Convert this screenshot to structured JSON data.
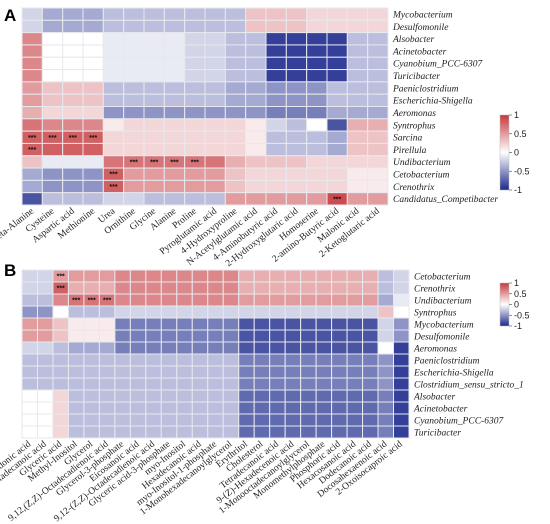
{
  "colors": {
    "neg": "#1c2a8c",
    "mid": "#ffffff",
    "pos": "#c5383c",
    "grid": "#e8e8ee"
  },
  "chart_data": [
    {
      "panel": "A",
      "type": "heatmap",
      "rows": [
        "Mycobacterium",
        "Desulfomonile",
        "Alsobacter",
        "Acinetobacter",
        "Cyanobium_PCC-6307",
        "Turicibacter",
        "Paeniclostridium",
        "Escherichia-Shigella",
        "Aeromonas",
        "Syntrophus",
        "Sarcina",
        "Pirellula",
        "Undibacterium",
        "Cetobacterium",
        "Crenothrix",
        "Candidatus_Competibacter"
      ],
      "columns": [
        "beta-Alanine",
        "Cysteine",
        "Aspartic acid",
        "Methionine",
        "Urea",
        "Ornithine",
        "Glycine",
        "Alanine",
        "Proline",
        "Pyroglutamic acid",
        "4-Hydroxyproline",
        "N-Acetylglutamic acid",
        "4-Aminobutyric acid",
        "2-Hydroxyglutaric acid",
        "Homoserine",
        "2-amino-Butyric acid",
        "Malonic acid",
        "2-Ketoglutaric acid"
      ],
      "values": [
        [
          -0.2,
          -0.4,
          -0.4,
          -0.4,
          -0.3,
          -0.3,
          -0.3,
          -0.3,
          -0.3,
          -0.3,
          -0.3,
          0.3,
          0.3,
          0.3,
          0.2,
          0.2,
          0.2,
          0.2
        ],
        [
          -0.2,
          -0.4,
          -0.4,
          -0.4,
          -0.3,
          -0.3,
          -0.3,
          -0.3,
          -0.3,
          -0.3,
          -0.3,
          0.3,
          0.3,
          0.3,
          0.2,
          0.2,
          0.2,
          0.2
        ],
        [
          0.6,
          0,
          0,
          0,
          -0.1,
          -0.1,
          -0.1,
          -0.1,
          -0.2,
          -0.2,
          -0.3,
          -0.3,
          -0.9,
          -0.9,
          -0.9,
          -0.9,
          -0.3,
          -0.3
        ],
        [
          0.6,
          0,
          0,
          0,
          -0.1,
          -0.1,
          -0.1,
          -0.1,
          -0.2,
          -0.2,
          -0.3,
          -0.3,
          -0.9,
          -0.9,
          -0.9,
          -0.9,
          -0.3,
          -0.3
        ],
        [
          0.6,
          0,
          0,
          0,
          -0.1,
          -0.1,
          -0.1,
          -0.1,
          -0.2,
          -0.2,
          -0.3,
          -0.3,
          -0.9,
          -0.9,
          -0.9,
          -0.9,
          -0.3,
          -0.3
        ],
        [
          0.6,
          0,
          0,
          0,
          -0.1,
          -0.1,
          -0.1,
          -0.1,
          -0.2,
          -0.2,
          -0.3,
          -0.3,
          -0.9,
          -0.9,
          -0.9,
          -0.9,
          -0.3,
          -0.3
        ],
        [
          0.5,
          0.3,
          0.3,
          0.3,
          -0.3,
          -0.3,
          -0.3,
          -0.3,
          -0.3,
          -0.3,
          -0.4,
          -0.4,
          -0.5,
          -0.5,
          -0.5,
          -0.3,
          -0.3,
          -0.3
        ],
        [
          0.5,
          0.3,
          0.3,
          0.3,
          -0.3,
          -0.3,
          -0.3,
          -0.3,
          -0.3,
          -0.3,
          -0.4,
          -0.4,
          -0.5,
          -0.5,
          -0.5,
          -0.3,
          -0.3,
          -0.3
        ],
        [
          0.4,
          0.2,
          0.2,
          0.2,
          -0.5,
          -0.5,
          -0.5,
          -0.5,
          -0.5,
          -0.5,
          -0.5,
          -0.5,
          -0.6,
          -0.6,
          -0.6,
          -0.4,
          -0.4,
          -0.4
        ],
        [
          0.7,
          0.6,
          0.6,
          0.6,
          0.1,
          0.2,
          0.2,
          0.2,
          0.2,
          0.2,
          0.2,
          0.1,
          -0.2,
          -0.3,
          0,
          -0.8,
          0.4,
          0.4
        ],
        [
          0.8,
          0.8,
          0.8,
          0.8,
          0.2,
          0.2,
          0.2,
          0.2,
          0.2,
          0.2,
          0.2,
          0.1,
          -0.3,
          -0.3,
          -0.3,
          -0.4,
          0.3,
          0.3
        ],
        [
          0.8,
          0.8,
          0.8,
          0.8,
          0.2,
          0.2,
          0.2,
          0.2,
          0.2,
          0.2,
          0.2,
          0.1,
          -0.3,
          -0.3,
          -0.3,
          -0.4,
          0.3,
          0.3
        ],
        [
          0.3,
          -0.1,
          -0.1,
          -0.1,
          0.7,
          0.7,
          0.7,
          0.7,
          0.7,
          0.7,
          0.4,
          0.3,
          0.3,
          0.3,
          0.2,
          0.2,
          0.2,
          0.2
        ],
        [
          -0.4,
          -0.5,
          -0.5,
          -0.5,
          0.8,
          0.5,
          0.5,
          0.5,
          0.5,
          0.5,
          0.3,
          0.2,
          0.2,
          0.2,
          0.2,
          0.2,
          0.1,
          0.1
        ],
        [
          -0.4,
          -0.5,
          -0.5,
          -0.5,
          0.8,
          0.5,
          0.5,
          0.5,
          0.5,
          0.5,
          0.3,
          0.2,
          0.2,
          0.2,
          0.2,
          0.2,
          0.1,
          0.1
        ],
        [
          -0.8,
          -0.3,
          -0.3,
          -0.3,
          -0.2,
          -0.2,
          -0.3,
          -0.3,
          -0.3,
          -0.3,
          0.5,
          0.5,
          0.5,
          0.5,
          0.5,
          0.9,
          0.5,
          0.5
        ]
      ],
      "significance": [
        {
          "row": 10,
          "col": 0,
          "label": "***"
        },
        {
          "row": 10,
          "col": 1,
          "label": "***"
        },
        {
          "row": 10,
          "col": 2,
          "label": "***"
        },
        {
          "row": 10,
          "col": 3,
          "label": "***"
        },
        {
          "row": 11,
          "col": 0,
          "label": "***"
        },
        {
          "row": 12,
          "col": 5,
          "label": "***"
        },
        {
          "row": 12,
          "col": 6,
          "label": "***"
        },
        {
          "row": 12,
          "col": 7,
          "label": "***"
        },
        {
          "row": 12,
          "col": 8,
          "label": "***"
        },
        {
          "row": 13,
          "col": 4,
          "label": "***"
        },
        {
          "row": 14,
          "col": 4,
          "label": "***"
        },
        {
          "row": 15,
          "col": 15,
          "label": "***"
        }
      ],
      "legend_ticks": [
        "1",
        "0.5",
        "0",
        "-0.5",
        "-1"
      ],
      "range": [
        -1,
        1
      ]
    },
    {
      "panel": "B",
      "type": "heatmap",
      "rows": [
        "Cetobacterium",
        "Crenothrix",
        "Undibacterium",
        "Syntrophus",
        "Mycobacterium",
        "Desulfomonile",
        "Aeromonas",
        "Paeniclostridium",
        "Escherichia-Shigella",
        "Clostridium_sensu_stricto_1",
        "Alsobacter",
        "Acinetobacter",
        "Cyanobium_PCC-6307",
        "Turicibacter"
      ],
      "columns": [
        "Arachidonic acid",
        "Octadecanoic acid",
        "Glyceric acid",
        "Methyl-Inositol",
        "Glycerol",
        "9,12,(Z,Z)-Octadecadienoic acid",
        "Glycerol-3-phosphate",
        "Eicosanoic acid",
        "9,12-(Z,Z)-Octadecadienoic acid",
        "Glyceric acid-3-phosphate",
        "myo-Inositol",
        "Hexadecanoic acid",
        "myo-Inositol-1-phosphate",
        "1-Monohexadecanoylglycerol",
        "Erythritol",
        "Cholesterol",
        "Tetradecanoic acid",
        "9-(Z)-Hexadecenoic acid",
        "1-Monooctadecanoylglycerol",
        "Monomethylphosphate",
        "Phosphoric acid",
        "Hexacosanoic acid",
        "Dodecanoic acid",
        "Docosahexaenoic acid",
        "2-Oxoisocaproic acid"
      ],
      "values": [
        [
          -0.2,
          -0.2,
          0.5,
          0.5,
          0.5,
          0.5,
          0.6,
          0.6,
          0.6,
          0.6,
          0.6,
          0.6,
          0.6,
          0.6,
          0.4,
          0.4,
          0.4,
          0.4,
          0.4,
          0.4,
          0.4,
          0.4,
          0.4,
          -0.3,
          -0.2
        ],
        [
          -0.2,
          -0.2,
          0.8,
          0.4,
          0.4,
          0.4,
          0.6,
          0.6,
          0.6,
          0.6,
          0.6,
          0.6,
          0.6,
          0.6,
          0.4,
          0.4,
          0.4,
          0.4,
          0.4,
          0.4,
          0.4,
          0.4,
          0.4,
          -0.3,
          -0.2
        ],
        [
          -0.3,
          -0.3,
          0.6,
          0.7,
          0.7,
          0.7,
          0.6,
          0.6,
          0.6,
          0.6,
          0.6,
          0.6,
          0.6,
          0.6,
          0.5,
          0.5,
          0.5,
          0.5,
          0.5,
          0.5,
          0.5,
          0.5,
          0.5,
          -0.4,
          -0.1
        ],
        [
          -0.5,
          -0.5,
          0,
          -0.3,
          -0.3,
          -0.3,
          -0.2,
          -0.2,
          -0.2,
          -0.2,
          -0.2,
          -0.2,
          -0.2,
          -0.2,
          -0.2,
          -0.2,
          -0.2,
          -0.2,
          -0.2,
          -0.2,
          -0.2,
          -0.2,
          -0.2,
          0.3,
          0
        ],
        [
          0.5,
          0.5,
          0.3,
          0.1,
          0.1,
          0.1,
          -0.6,
          -0.6,
          -0.6,
          -0.6,
          -0.6,
          -0.6,
          -0.6,
          -0.6,
          -0.8,
          -0.8,
          -0.8,
          -0.8,
          -0.8,
          -0.8,
          -0.8,
          -0.8,
          -0.8,
          -0.2,
          -0.5
        ],
        [
          0.5,
          0.5,
          0.3,
          0.1,
          0.1,
          0.1,
          -0.6,
          -0.6,
          -0.6,
          -0.6,
          -0.6,
          -0.6,
          -0.6,
          -0.6,
          -0.8,
          -0.8,
          -0.8,
          -0.8,
          -0.8,
          -0.8,
          -0.8,
          -0.8,
          -0.8,
          -0.2,
          -0.5
        ],
        [
          -0.2,
          -0.2,
          -0.3,
          -0.4,
          -0.4,
          -0.4,
          -0.6,
          -0.6,
          -0.6,
          -0.6,
          -0.6,
          -0.6,
          -0.6,
          -0.6,
          -0.8,
          -0.8,
          -0.8,
          -0.8,
          -0.8,
          -0.8,
          -0.8,
          -0.8,
          -0.8,
          0,
          -0.9
        ],
        [
          -0.3,
          -0.3,
          -0.3,
          -0.3,
          -0.3,
          -0.3,
          -0.3,
          -0.3,
          -0.3,
          -0.3,
          -0.3,
          -0.3,
          -0.3,
          -0.3,
          -0.6,
          -0.6,
          -0.6,
          -0.6,
          -0.6,
          -0.6,
          -0.6,
          -0.6,
          -0.6,
          -0.5,
          -0.9
        ],
        [
          -0.3,
          -0.3,
          -0.3,
          -0.3,
          -0.3,
          -0.3,
          -0.3,
          -0.3,
          -0.3,
          -0.3,
          -0.3,
          -0.3,
          -0.3,
          -0.3,
          -0.6,
          -0.6,
          -0.6,
          -0.6,
          -0.6,
          -0.6,
          -0.6,
          -0.6,
          -0.6,
          -0.5,
          -0.9
        ],
        [
          -0.3,
          -0.3,
          -0.3,
          -0.3,
          -0.3,
          -0.3,
          -0.3,
          -0.3,
          -0.3,
          -0.3,
          -0.3,
          -0.3,
          -0.3,
          -0.3,
          -0.6,
          -0.6,
          -0.6,
          -0.6,
          -0.6,
          -0.6,
          -0.6,
          -0.6,
          -0.6,
          -0.5,
          -0.9
        ],
        [
          0,
          0,
          0.2,
          -0.3,
          -0.3,
          -0.3,
          -0.3,
          -0.3,
          -0.3,
          -0.3,
          -0.3,
          -0.3,
          -0.3,
          -0.3,
          -0.7,
          -0.7,
          -0.7,
          -0.7,
          -0.7,
          -0.7,
          -0.7,
          -0.7,
          -0.7,
          -0.6,
          -0.9
        ],
        [
          0,
          0,
          0.2,
          -0.3,
          -0.3,
          -0.3,
          -0.3,
          -0.3,
          -0.3,
          -0.3,
          -0.3,
          -0.3,
          -0.3,
          -0.3,
          -0.7,
          -0.7,
          -0.7,
          -0.7,
          -0.7,
          -0.7,
          -0.7,
          -0.7,
          -0.7,
          -0.6,
          -0.9
        ],
        [
          0,
          0,
          0.2,
          -0.3,
          -0.3,
          -0.3,
          -0.3,
          -0.3,
          -0.3,
          -0.3,
          -0.3,
          -0.3,
          -0.3,
          -0.3,
          -0.7,
          -0.7,
          -0.7,
          -0.7,
          -0.7,
          -0.7,
          -0.7,
          -0.7,
          -0.7,
          -0.6,
          -0.9
        ],
        [
          0,
          0,
          0.2,
          -0.3,
          -0.3,
          -0.3,
          -0.3,
          -0.3,
          -0.3,
          -0.3,
          -0.3,
          -0.3,
          -0.3,
          -0.3,
          -0.7,
          -0.7,
          -0.7,
          -0.7,
          -0.7,
          -0.7,
          -0.7,
          -0.7,
          -0.7,
          -0.6,
          -0.9
        ]
      ],
      "significance": [
        {
          "row": 0,
          "col": 2,
          "label": "***"
        },
        {
          "row": 1,
          "col": 2,
          "label": "***"
        },
        {
          "row": 2,
          "col": 3,
          "label": "***"
        },
        {
          "row": 2,
          "col": 4,
          "label": "***"
        },
        {
          "row": 2,
          "col": 5,
          "label": "***"
        }
      ],
      "legend_ticks": [
        "1",
        "0.5",
        "0",
        "-0.5",
        "-1"
      ],
      "range": [
        -1,
        1
      ]
    }
  ]
}
